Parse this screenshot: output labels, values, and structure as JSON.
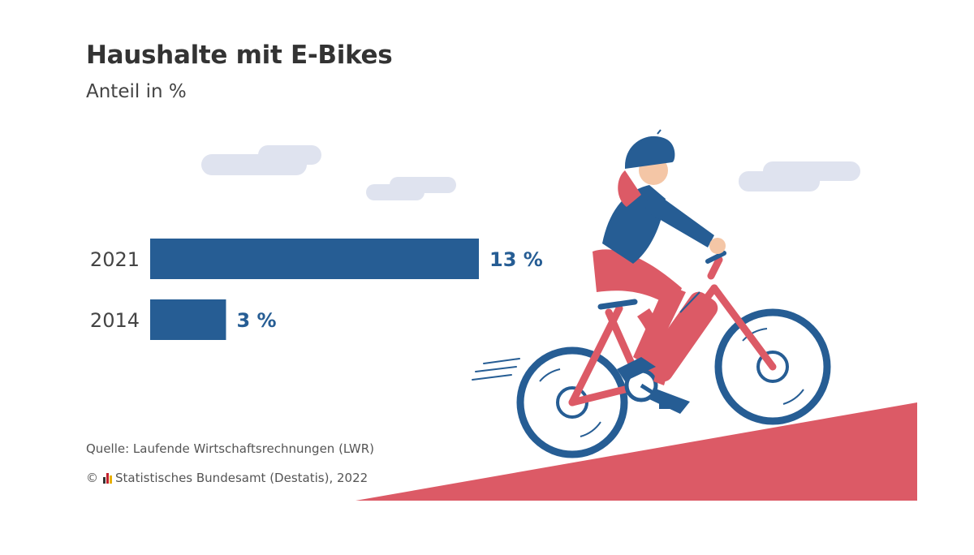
{
  "chart_data": {
    "type": "bar",
    "orientation": "horizontal",
    "title": "Haushalte mit E-Bikes",
    "subtitle": "Anteil in %",
    "categories": [
      "2021",
      "2014"
    ],
    "values": [
      13,
      3
    ],
    "value_labels": [
      "13 %",
      "3 %"
    ],
    "xlim": [
      0,
      13
    ],
    "xlabel": "",
    "ylabel": "",
    "grid": false,
    "legend": "none"
  },
  "footer": {
    "source": "Quelle: Laufende Wirtschaftsrechnungen (LWR)",
    "copyright_symbol": "©",
    "copyright_text": "Statistisches Bundesamt (Destatis), 2022"
  },
  "colors": {
    "bar": "#265d94",
    "label": "#265d94",
    "slope": "#dc5a66",
    "cloud": "#dfe3ef",
    "wheel": "#265d94",
    "frame": "#dc5a66"
  }
}
